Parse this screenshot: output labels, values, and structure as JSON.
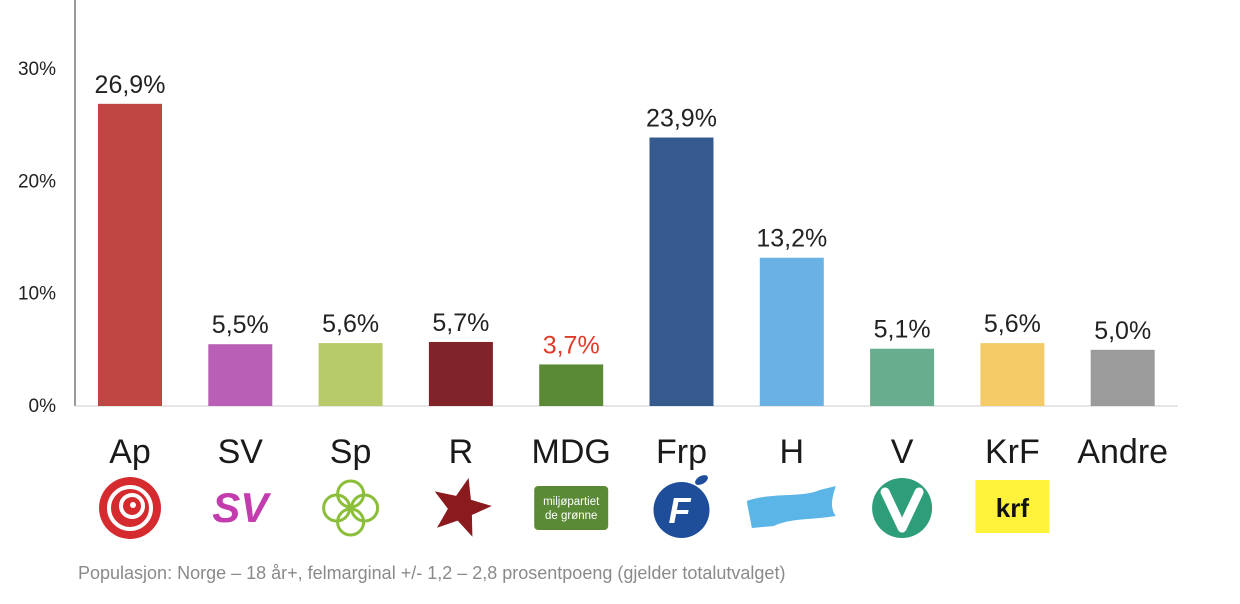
{
  "chart_data": {
    "type": "bar",
    "categories": [
      "Ap",
      "SV",
      "Sp",
      "R",
      "MDG",
      "Frp",
      "H",
      "V",
      "KrF",
      "Andre"
    ],
    "values": [
      26.9,
      5.5,
      5.6,
      5.7,
      3.7,
      23.9,
      13.2,
      5.1,
      5.6,
      5.0
    ],
    "value_labels": [
      "26,9%",
      "5,5%",
      "5,6%",
      "5,7%",
      "3,7%",
      "23,9%",
      "13,2%",
      "5,1%",
      "5,6%",
      "5,0%"
    ],
    "colors": [
      "#c04643",
      "#b95fb6",
      "#b6ca6a",
      "#80242a",
      "#5b8a37",
      "#345a8e",
      "#6ab2e3",
      "#68ad8e",
      "#f5cb68",
      "#9b9b9b"
    ],
    "label_colors": [
      "#222222",
      "#222222",
      "#222222",
      "#222222",
      "#e03a2b",
      "#222222",
      "#222222",
      "#222222",
      "#222222",
      "#222222"
    ],
    "yticks": [
      0,
      10,
      20,
      30
    ],
    "ytick_labels": [
      "0%",
      "10%",
      "20%",
      "30%"
    ],
    "ylim": [
      0,
      36
    ],
    "xlabel": "",
    "ylabel": "",
    "title": "",
    "grid": false,
    "logos": {
      "Ap": {
        "icon": "rose-icon",
        "color": "#d52b2f"
      },
      "SV": {
        "icon": "sv-logo-icon",
        "text": "SV",
        "color": "#c23cae"
      },
      "Sp": {
        "icon": "clover-icon",
        "color": "#8bbf3a"
      },
      "R": {
        "icon": "red-star-icon",
        "color": "#8b1a1f"
      },
      "MDG": {
        "icon": "mdg-logo-icon",
        "text_lines": [
          "miljøpartiet",
          "de grønne"
        ],
        "color": "#5b8a37"
      },
      "Frp": {
        "icon": "frp-apple-icon",
        "text": "F",
        "color": "#1e4e9a"
      },
      "H": {
        "icon": "h-banner-icon",
        "color": "#5bb5e6"
      },
      "V": {
        "icon": "v-circle-icon",
        "color": "#2e9e7a"
      },
      "KrF": {
        "icon": "krf-logo-icon",
        "text": "krf",
        "color": "#fff23b"
      }
    }
  },
  "footnote": "Populasjon: Norge – 18 år+, felmarginal +/- 1,2 – 2,8 prosentpoeng (gjelder totalutvalget)"
}
